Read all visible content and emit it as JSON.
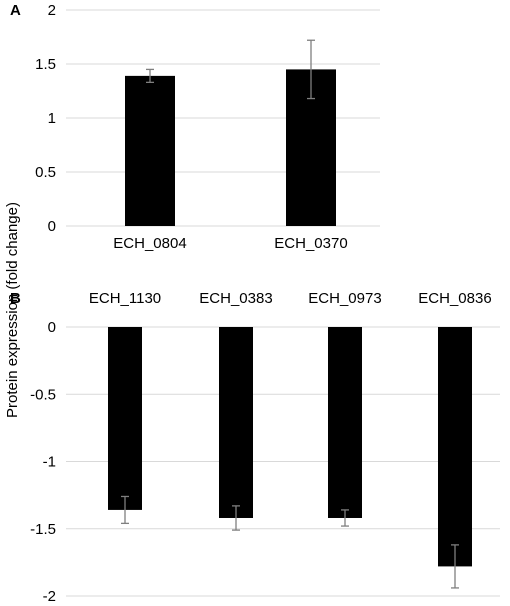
{
  "ylabel": "Protein expression (fold change)",
  "chart_data": [
    {
      "panel": "A",
      "type": "bar",
      "categories": [
        "ECH_0804",
        "ECH_0370"
      ],
      "values": [
        1.39,
        1.45
      ],
      "errors": [
        0.06,
        0.27
      ],
      "ylim": [
        0,
        2
      ],
      "yticks": [
        "0",
        "0.5",
        "1",
        "1.5",
        "2"
      ],
      "grid": true,
      "bar_color": "#000000"
    },
    {
      "panel": "B",
      "type": "bar",
      "categories": [
        "ECH_1130",
        "ECH_0383",
        "ECH_0973",
        "ECH_0836"
      ],
      "values": [
        -1.36,
        -1.42,
        -1.42,
        -1.78
      ],
      "errors": [
        0.1,
        0.09,
        0.06,
        0.16
      ],
      "ylim": [
        -2,
        0
      ],
      "yticks": [
        "0",
        "-0.5",
        "-1",
        "-1.5",
        "-2"
      ],
      "grid": true,
      "bar_color": "#000000"
    }
  ]
}
